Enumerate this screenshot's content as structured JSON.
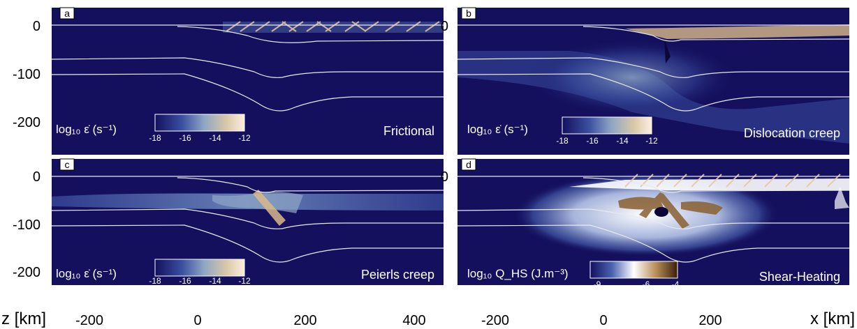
{
  "panels": [
    {
      "letter": "a",
      "title": "Frictional",
      "quantity": "log₁₀ ε̇ (s⁻¹)",
      "colorbar": {
        "ticks": [
          "-18",
          "-16",
          "-14",
          "-12"
        ],
        "colors": [
          "#14105e",
          "#3b4fa0",
          "#8fa6c4",
          "#d9c8a8",
          "#fcefe0"
        ]
      }
    },
    {
      "letter": "b",
      "title": "Dislocation creep",
      "quantity": "log₁₀ ε̇ (s⁻¹)",
      "colorbar": {
        "ticks": [
          "-18",
          "-16",
          "-14",
          "-12"
        ],
        "colors": [
          "#14105e",
          "#3b4fa0",
          "#8fa6c4",
          "#d9c8a8",
          "#fcefe0"
        ]
      }
    },
    {
      "letter": "c",
      "title": "Peierls creep",
      "quantity": "log₁₀ ε̇ (s⁻¹)",
      "colorbar": {
        "ticks": [
          "-18",
          "-16",
          "-14",
          "-12"
        ],
        "colors": [
          "#14105e",
          "#3b4fa0",
          "#8fa6c4",
          "#d9c8a8",
          "#fcefe0"
        ]
      }
    },
    {
      "letter": "d",
      "title": "Shear-Heating",
      "quantity": "log₁₀ Q_HS (J.m⁻³)",
      "colorbar": {
        "ticks": [
          "-9",
          "-6",
          "-4"
        ],
        "colors": [
          "#14105e",
          "#4a63b0",
          "#ffffff",
          "#b8905a",
          "#3b1e08"
        ]
      }
    }
  ],
  "y_axis": {
    "label": "z [km]",
    "ticks": [
      "0",
      "-100",
      "-200"
    ]
  },
  "x_axis_left": {
    "ticks": [
      "-200",
      "0",
      "200",
      "400"
    ]
  },
  "x_axis_right": {
    "label": "x [km]",
    "ticks": [
      "-200",
      "0",
      "200"
    ]
  },
  "colors": {
    "background": "#14105e",
    "boundary_line": "#e8e8f0"
  }
}
